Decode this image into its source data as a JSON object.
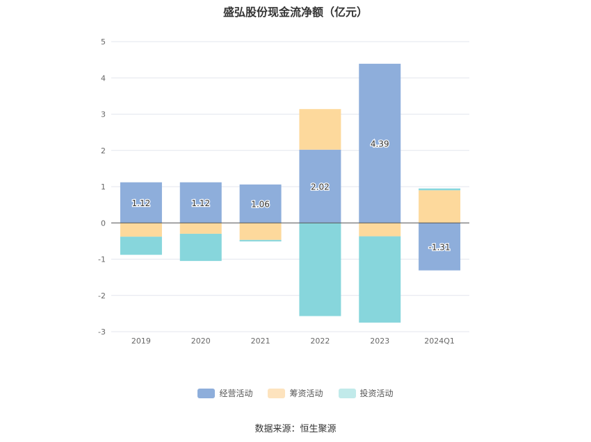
{
  "chart_data": {
    "type": "bar",
    "stacked": true,
    "title": "盛弘股份现金流净额（亿元）",
    "categories": [
      "2019",
      "2020",
      "2021",
      "2022",
      "2023",
      "2024Q1"
    ],
    "series": [
      {
        "name": "经营活动",
        "color": "#8eaedb",
        "values": [
          1.12,
          1.12,
          1.06,
          2.02,
          4.39,
          -1.31
        ]
      },
      {
        "name": "筹资活动",
        "color": "#fdd99c",
        "values": [
          -0.38,
          -0.3,
          -0.47,
          1.12,
          -0.37,
          0.9
        ]
      },
      {
        "name": "投资活动",
        "color": "#87d6dc",
        "values": [
          -0.5,
          -0.75,
          -0.04,
          -2.57,
          -2.38,
          0.05
        ]
      }
    ],
    "data_labels": [
      "1.12",
      "1.12",
      "1.06",
      "2.02",
      "4.39",
      "-1.31"
    ],
    "ylim": [
      -3,
      5
    ],
    "yticks": [
      5,
      4,
      3,
      2,
      1,
      0,
      -1,
      -2,
      -3
    ],
    "grid": true,
    "legend_position": "bottom"
  },
  "source_text": "数据来源：恒生聚源",
  "legend_colors": {
    "operating": "#8eaedb",
    "financing": "#fde3be",
    "investing": "#c1eaea"
  }
}
